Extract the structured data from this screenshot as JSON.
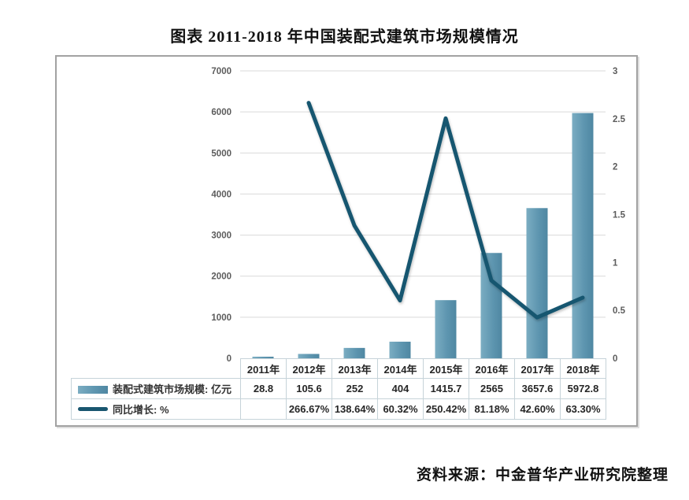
{
  "page": {
    "title": "图表 2011-2018 年中国装配式建筑市场规模情况",
    "source": "资料来源：中金普华产业研究院整理"
  },
  "chart_data": {
    "type": "bar+line combo with data table",
    "categories": [
      "2011年",
      "2012年",
      "2013年",
      "2014年",
      "2015年",
      "2016年",
      "2017年",
      "2018年"
    ],
    "series": [
      {
        "name": "装配式建筑市场规模: 亿元",
        "type": "bar",
        "axis": "left",
        "values": [
          28.8,
          105.6,
          252,
          404,
          1415.7,
          2565,
          3657.6,
          5972.8
        ],
        "display": [
          "28.8",
          "105.6",
          "252",
          "404",
          "1415.7",
          "2565",
          "3657.6",
          "5972.8"
        ]
      },
      {
        "name": "同比增长: %",
        "type": "line",
        "axis": "right",
        "values": [
          null,
          2.6667,
          1.3864,
          0.6032,
          2.5042,
          0.8118,
          0.426,
          0.633
        ],
        "display": [
          "",
          "266.67%",
          "138.64%",
          "60.32%",
          "250.42%",
          "81.18%",
          "42.60%",
          "63.30%"
        ]
      }
    ],
    "left_axis": {
      "min": 0,
      "max": 7000,
      "step": 1000,
      "ticks": [
        "0",
        "1000",
        "2000",
        "3000",
        "4000",
        "5000",
        "6000",
        "7000"
      ]
    },
    "right_axis": {
      "min": 0,
      "max": 3,
      "step": 0.5,
      "ticks": [
        "0",
        "0.5",
        "1",
        "1.5",
        "2",
        "2.5",
        "3"
      ]
    },
    "grid": true,
    "legend_position": "table-left-column"
  },
  "colors": {
    "bar_gradient": [
      "#7badc2",
      "#5e96b0",
      "#4f87a2"
    ],
    "line": "#19566f",
    "grid": "#d9d9d9",
    "axis_text": "#5c5c5c",
    "table_border": "#c6d3d9",
    "frame_border": "#a2a2a2"
  }
}
